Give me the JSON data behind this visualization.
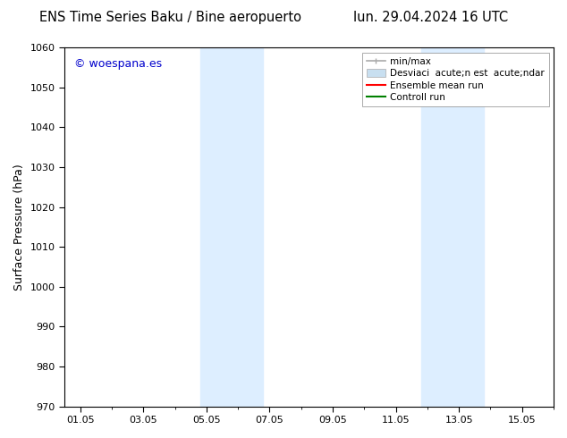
{
  "title_left": "ENS Time Series Baku / Bine aeropuerto",
  "title_right": "lun. 29.04.2024 16 UTC",
  "ylabel": "Surface Pressure (hPa)",
  "ylim": [
    970,
    1060
  ],
  "yticks": [
    970,
    980,
    990,
    1000,
    1010,
    1020,
    1030,
    1040,
    1050,
    1060
  ],
  "xtick_labels": [
    "01.05",
    "03.05",
    "05.05",
    "07.05",
    "09.05",
    "11.05",
    "13.05",
    "15.05"
  ],
  "xtick_positions": [
    0.0,
    2.0,
    4.0,
    6.0,
    8.0,
    10.0,
    12.0,
    14.0
  ],
  "xlim": [
    -0.5,
    15.0
  ],
  "watermark": "© woespana.es",
  "watermark_color": "#0000cc",
  "background_color": "#ffffff",
  "plot_bg_color": "#ffffff",
  "shaded_regions": [
    {
      "xmin": 3.8,
      "xmax": 5.8,
      "color": "#ddeeff"
    },
    {
      "xmin": 10.8,
      "xmax": 12.8,
      "color": "#ddeeff"
    }
  ],
  "legend_line1": "min/max",
  "legend_line2": "Desviaci  acute;n est  acute;ndar",
  "legend_line3": "Ensemble mean run",
  "legend_line4": "Controll run",
  "legend_color1": "#aaaaaa",
  "legend_color2": "#c8dff0",
  "legend_color3": "#ff0000",
  "legend_color4": "#008000",
  "title_fontsize": 10.5,
  "axis_label_fontsize": 9,
  "tick_fontsize": 8,
  "watermark_fontsize": 9,
  "legend_fontsize": 7.5
}
